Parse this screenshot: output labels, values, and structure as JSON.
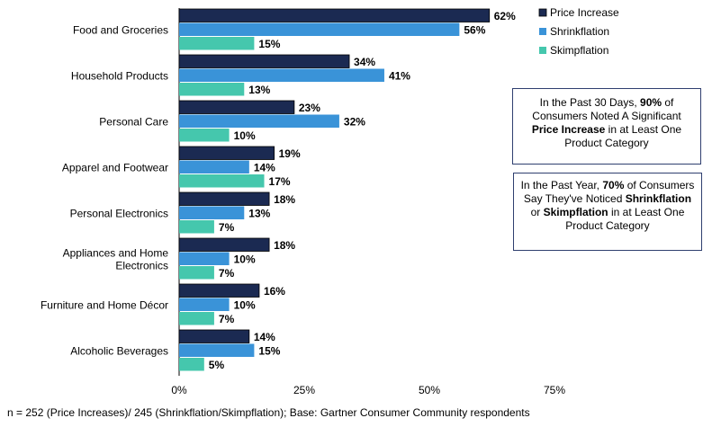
{
  "chart_data": {
    "type": "bar",
    "orientation": "horizontal",
    "categories": [
      "Food and Groceries",
      "Household Products",
      "Personal Care",
      "Apparel and Footwear",
      "Personal Electronics",
      "Appliances and Home Electronics",
      "Furniture and Home Décor",
      "Alcoholic Beverages"
    ],
    "series": [
      {
        "name": "Price Increase",
        "color": "#1b2a52",
        "values": [
          62,
          34,
          23,
          19,
          18,
          18,
          16,
          14
        ]
      },
      {
        "name": "Shrinkflation",
        "color": "#3a93d8",
        "values": [
          56,
          41,
          32,
          14,
          13,
          10,
          10,
          15
        ]
      },
      {
        "name": "Skimpflation",
        "color": "#45c7ad",
        "values": [
          15,
          13,
          10,
          17,
          7,
          7,
          7,
          5
        ]
      }
    ],
    "xlim": [
      0,
      75
    ],
    "xticks": [
      "0%",
      "25%",
      "50%",
      "75%"
    ],
    "value_suffix": "%",
    "legend_position": "top-right"
  },
  "callouts": {
    "first": {
      "pre": "In the Past 30 Days, ",
      "b1": "90%",
      "mid1": " of Consumers Noted A Significant ",
      "b2": "Price Increase",
      "post": " in at Least One Product Category"
    },
    "second": {
      "pre": "In the Past Year, ",
      "b1": "70%",
      "mid1": " of Consumers Say They've Noticed ",
      "b2": "Shrinkflation",
      "mid2": " or ",
      "b3": "Skimpflation",
      "post": " in at Least One Product Category"
    }
  },
  "footnote": "n = 252 (Price Increases)/ 245 (Shrinkflation/Skimpflation);  Base: Gartner Consumer Community respondents"
}
